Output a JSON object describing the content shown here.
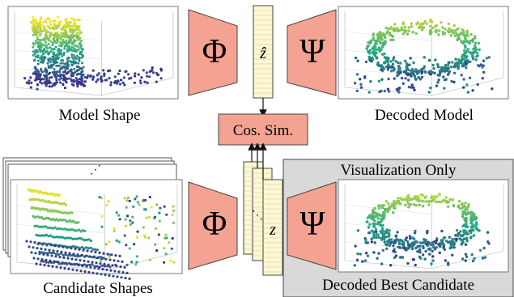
{
  "labels": {
    "model_shape": "Model Shape",
    "decoded_model": "Decoded Model",
    "cosine_similarity": "Cos. Sim.",
    "visualization_only": "Visualization Only",
    "candidate_shapes": "Candidate Shapes",
    "decoded_best_candidate": "Decoded Best Candidate"
  },
  "symbols": {
    "encoder": "Φ",
    "decoder": "Ψ",
    "latent_model": "ẑ",
    "latent_candidate": "z"
  },
  "colors": {
    "block_fill": "#f4a393",
    "latent_fill": "#fdf8d2",
    "viz_panel": "#d9d9d9",
    "point_low": "#3b2a8c",
    "point_mid": "#22a884",
    "point_high": "#fde725"
  }
}
